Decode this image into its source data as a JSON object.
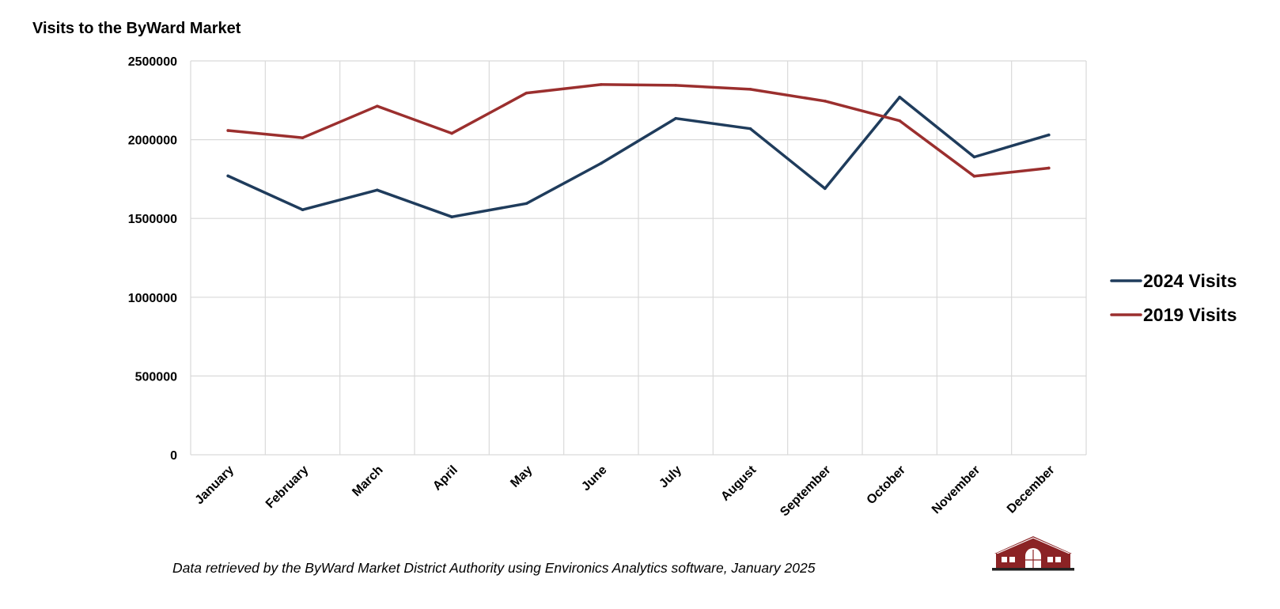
{
  "chart_data": {
    "type": "line",
    "title": "Visits to the ByWard Market",
    "xlabel": "",
    "ylabel": "",
    "categories": [
      "January",
      "February",
      "March",
      "April",
      "May",
      "June",
      "July",
      "August",
      "September",
      "October",
      "November",
      "December"
    ],
    "series": [
      {
        "name": "2024 Visits",
        "color": "#1f3c5c",
        "values": [
          1770000,
          1555000,
          1680000,
          1510000,
          1595000,
          1850000,
          2135000,
          2070000,
          1690000,
          2270000,
          1890000,
          2030000
        ]
      },
      {
        "name": "2019 Visits",
        "color": "#9b2f2e",
        "values": [
          2058000,
          2012000,
          2213000,
          2040000,
          2296000,
          2350000,
          2345000,
          2320000,
          2245000,
          2120000,
          1768000,
          1820000
        ]
      }
    ],
    "ylim": [
      0,
      2500000
    ],
    "yticks": [
      "0",
      "500000",
      "1000000",
      "1500000",
      "2000000",
      "2500000"
    ],
    "grid": true,
    "legend_position": "right"
  },
  "footnote": "Data retrieved by the ByWard Market District Authority using Environics Analytics software, January 2025",
  "logo": {
    "name": "byward-market-building-logo",
    "roof_color": "#8b2325",
    "base_color": "#222222"
  }
}
